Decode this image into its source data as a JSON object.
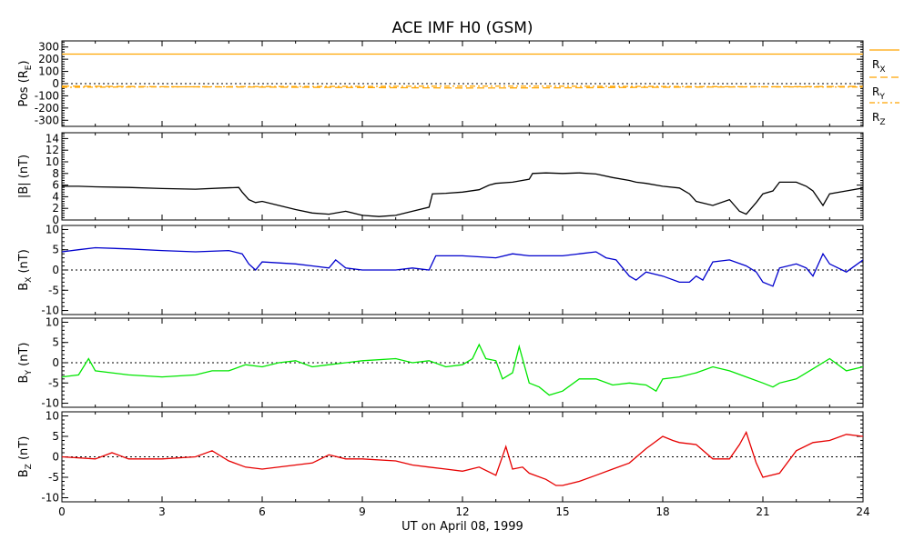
{
  "chart_data": {
    "type": "line",
    "title": "ACE IMF H0 (GSM)",
    "xlabel": "UT on April 08, 1999",
    "xlim": [
      0,
      24
    ],
    "xticks": [
      0,
      3,
      6,
      9,
      12,
      15,
      18,
      21,
      24
    ],
    "xtick_labels": [
      "0",
      "3",
      "6",
      "9",
      "12",
      "15",
      "18",
      "21",
      "24"
    ],
    "panels": [
      {
        "id": "pos",
        "ylabel": {
          "main": "Pos (R",
          "sub": "E",
          "tail": ")"
        },
        "ylim": [
          -350,
          350
        ],
        "yticks": [
          -300,
          -200,
          -100,
          0,
          100,
          200,
          300
        ],
        "ytick_labels": [
          "-300",
          "-200",
          "-100",
          "0",
          "100",
          "200",
          "300"
        ],
        "zero_line": true,
        "series": [
          {
            "name": "R_X",
            "label_main": "R",
            "label_sub": "X",
            "color": "#ffa500",
            "dash": "",
            "x": [
              0,
              24
            ],
            "y": [
              242,
              242
            ]
          },
          {
            "name": "R_Y",
            "label_main": "R",
            "label_sub": "Y",
            "color": "#ffa500",
            "dash": "8,4",
            "x": [
              0,
              3,
              6,
              9,
              12,
              15,
              18,
              21,
              24
            ],
            "y": [
              -20,
              -25,
              -28,
              -32,
              -36,
              -34,
              -30,
              -26,
              -22
            ]
          },
          {
            "name": "R_Z",
            "label_main": "R",
            "label_sub": "Z",
            "color": "#ffa500",
            "dash": "6,3,2,3",
            "x": [
              0,
              3,
              6,
              9,
              12,
              15,
              18,
              21,
              24
            ],
            "y": [
              -30,
              -27,
              -24,
              -22,
              -20,
              -21,
              -23,
              -26,
              -28
            ]
          }
        ]
      },
      {
        "id": "bmag",
        "ylabel": {
          "main": "|B| (nT)",
          "sub": "",
          "tail": ""
        },
        "ylim": [
          0,
          15
        ],
        "yticks": [
          0,
          2,
          4,
          6,
          8,
          10,
          12,
          14
        ],
        "ytick_labels": [
          "0",
          "2",
          "4",
          "6",
          "8",
          "10",
          "12",
          "14"
        ],
        "zero_line": false,
        "series": [
          {
            "name": "|B|",
            "color": "#000000",
            "x": [
              0,
              0.5,
              1,
              2,
              3,
              4,
              4.8,
              5.3,
              5.4,
              5.6,
              5.8,
              6,
              6.5,
              7,
              7.5,
              8,
              8.5,
              9,
              9.5,
              10,
              10.5,
              11,
              11.1,
              11.5,
              12,
              12.5,
              12.8,
              13,
              13.5,
              14,
              14.1,
              14.5,
              15,
              15.5,
              16,
              16.5,
              17,
              17.2,
              17.5,
              18,
              18.5,
              18.8,
              19,
              19.5,
              20,
              20.3,
              20.5,
              20.8,
              21,
              21.3,
              21.5,
              22,
              22.3,
              22.5,
              22.8,
              23,
              23.5,
              24
            ],
            "y": [
              5.8,
              5.8,
              5.7,
              5.6,
              5.4,
              5.3,
              5.5,
              5.6,
              4.8,
              3.5,
              3.0,
              3.2,
              2.5,
              1.8,
              1.2,
              1.0,
              1.5,
              0.8,
              0.6,
              0.8,
              1.5,
              2.2,
              4.5,
              4.6,
              4.8,
              5.2,
              6.0,
              6.3,
              6.5,
              7.0,
              8.0,
              8.1,
              8.0,
              8.1,
              7.9,
              7.3,
              6.8,
              6.5,
              6.3,
              5.8,
              5.5,
              4.5,
              3.2,
              2.5,
              3.5,
              1.5,
              1.0,
              3.0,
              4.5,
              5.0,
              6.5,
              6.5,
              5.8,
              5.0,
              2.5,
              4.5,
              5.0,
              5.5
            ]
          }
        ]
      },
      {
        "id": "bx",
        "ylabel": {
          "main": "B",
          "sub": "X",
          "tail": " (nT)"
        },
        "ylim": [
          -11,
          11
        ],
        "yticks": [
          -10,
          -5,
          0,
          5,
          10
        ],
        "ytick_labels": [
          "-10",
          "-5",
          "0",
          "5",
          "10"
        ],
        "zero_line": true,
        "series": [
          {
            "name": "B_X",
            "color": "#0000cd",
            "x": [
              0,
              0.5,
              1,
              2,
              3,
              4,
              5,
              5.4,
              5.6,
              5.8,
              6,
              7,
              7.5,
              8,
              8.2,
              8.5,
              9,
              10,
              10.5,
              11,
              11.2,
              12,
              13,
              13.5,
              14,
              15,
              15.5,
              16,
              16.3,
              16.6,
              16.8,
              17,
              17.2,
              17.5,
              18,
              18.5,
              18.8,
              19,
              19.2,
              19.5,
              20,
              20.5,
              20.8,
              21,
              21.3,
              21.5,
              22,
              22.3,
              22.5,
              22.8,
              23,
              23.5,
              24
            ],
            "y": [
              4.5,
              5.0,
              5.5,
              5.2,
              4.8,
              4.5,
              4.8,
              4.0,
              1.5,
              0.0,
              2.0,
              1.5,
              1.0,
              0.5,
              2.5,
              0.5,
              0.0,
              0.0,
              0.5,
              0.0,
              3.5,
              3.5,
              3.0,
              4.0,
              3.5,
              3.5,
              4.0,
              4.5,
              3.0,
              2.5,
              0.5,
              -1.5,
              -2.5,
              -0.5,
              -1.5,
              -3.0,
              -3.0,
              -1.5,
              -2.5,
              2.0,
              2.5,
              1.0,
              -0.5,
              -3.0,
              -4.0,
              0.5,
              1.5,
              0.5,
              -1.5,
              4.0,
              1.5,
              -0.5,
              2.5
            ]
          }
        ]
      },
      {
        "id": "by",
        "ylabel": {
          "main": "B",
          "sub": "Y",
          "tail": " (nT)"
        },
        "ylim": [
          -11,
          11
        ],
        "yticks": [
          -10,
          -5,
          0,
          5,
          10
        ],
        "ytick_labels": [
          "-10",
          "-5",
          "0",
          "5",
          "10"
        ],
        "zero_line": true,
        "series": [
          {
            "name": "B_Y",
            "color": "#00e600",
            "x": [
              0,
              0.5,
              0.8,
              1,
              2,
              3,
              4,
              4.5,
              5,
              5.5,
              6,
              6.5,
              7,
              7.5,
              8,
              8.5,
              9,
              10,
              10.5,
              11,
              11.5,
              12,
              12.3,
              12.5,
              12.7,
              13,
              13.2,
              13.5,
              13.7,
              14,
              14.3,
              14.6,
              15,
              15.5,
              16,
              16.5,
              17,
              17.5,
              17.8,
              18,
              18.5,
              19,
              19.5,
              20,
              20.5,
              21,
              21.3,
              21.5,
              22,
              22.5,
              23,
              23.5,
              24
            ],
            "y": [
              -3.5,
              -3.0,
              1.0,
              -2.0,
              -3.0,
              -3.5,
              -3.0,
              -2.0,
              -2.0,
              -0.5,
              -1.0,
              0.0,
              0.5,
              -1.0,
              -0.5,
              0.0,
              0.5,
              1.0,
              0.0,
              0.5,
              -1.0,
              -0.5,
              1.0,
              4.5,
              1.0,
              0.5,
              -4.0,
              -2.5,
              4.0,
              -5.0,
              -6.0,
              -8.0,
              -7.0,
              -4.0,
              -4.0,
              -5.5,
              -5.0,
              -5.5,
              -7.0,
              -4.0,
              -3.5,
              -2.5,
              -1.0,
              -2.0,
              -3.5,
              -5.0,
              -6.0,
              -5.0,
              -4.0,
              -1.5,
              1.0,
              -2.0,
              -1.0
            ]
          }
        ]
      },
      {
        "id": "bz",
        "ylabel": {
          "main": "B",
          "sub": "Z",
          "tail": " (nT)"
        },
        "ylim": [
          -11,
          11
        ],
        "yticks": [
          -10,
          -5,
          0,
          5,
          10
        ],
        "ytick_labels": [
          "-10",
          "-5",
          "0",
          "5",
          "10"
        ],
        "zero_line": true,
        "series": [
          {
            "name": "B_Z",
            "color": "#e60000",
            "x": [
              0,
              1,
              1.5,
              2,
              3,
              4,
              4.5,
              5,
              5.5,
              6,
              7,
              7.5,
              8,
              8.5,
              9,
              10,
              10.5,
              11,
              11.5,
              12,
              12.5,
              13,
              13.3,
              13.5,
              13.8,
              14,
              14.5,
              14.8,
              15,
              15.5,
              16,
              16.5,
              17,
              17.5,
              18,
              18.3,
              18.5,
              19,
              19.5,
              20,
              20.3,
              20.5,
              20.8,
              21,
              21.5,
              22,
              22.5,
              23,
              23.5,
              24
            ],
            "y": [
              0.0,
              -0.5,
              1.0,
              -0.5,
              -0.5,
              0.0,
              1.5,
              -1.0,
              -2.5,
              -3.0,
              -2.0,
              -1.5,
              0.5,
              -0.5,
              -0.5,
              -1.0,
              -2.0,
              -2.5,
              -3.0,
              -3.5,
              -2.5,
              -4.5,
              2.5,
              -3.0,
              -2.5,
              -4.0,
              -5.5,
              -7.0,
              -7.0,
              -6.0,
              -4.5,
              -3.0,
              -1.5,
              2.0,
              5.0,
              4.0,
              3.5,
              3.0,
              -0.5,
              -0.5,
              3.0,
              6.0,
              -1.5,
              -5.0,
              -4.0,
              1.5,
              3.5,
              4.0,
              5.5,
              5.0
            ]
          }
        ]
      }
    ]
  }
}
